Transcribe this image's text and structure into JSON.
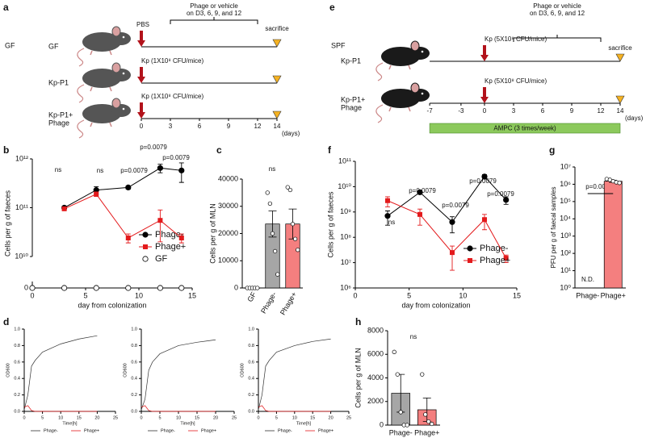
{
  "panel_labels": [
    "a",
    "b",
    "c",
    "d",
    "e",
    "f",
    "g",
    "h"
  ],
  "diagram_a": {
    "group": "GF",
    "phage_note": [
      "Phage or vehicle",
      "on D3, 6, 9, and 12"
    ],
    "end": "sacrifice",
    "rows": [
      {
        "name": [
          "GF"
        ],
        "dose": "PBS"
      },
      {
        "name": [
          "Kp-P1"
        ],
        "dose": "Kp (1X10⁸ CFU/mice)"
      },
      {
        "name": [
          "Kp-P1+",
          "Phage"
        ],
        "dose": "Kp (1X10⁸ CFU/mice)"
      }
    ],
    "days": [
      0,
      3,
      6,
      9,
      12,
      14
    ],
    "unit": "(days)"
  },
  "diagram_e": {
    "group": "SPF",
    "phage_note": [
      "Phage or vehicle",
      "on D3, 6, 9, and 12"
    ],
    "end": "sacrifice",
    "rows": [
      {
        "name": [
          "Kp-P1"
        ],
        "dose": "Kp (5X10⁸ CFU/mice)"
      },
      {
        "name": [
          "Kp-P1+",
          "Phage"
        ],
        "dose": "Kp (5X10⁸ CFU/mice)"
      }
    ],
    "days": [
      -7,
      -3,
      0,
      3,
      6,
      9,
      12,
      14
    ],
    "unit": "(days)",
    "treatment": "AMPC (3 times/week)"
  },
  "chart_data": [
    {
      "type": "line",
      "yscale": "log",
      "markers": true,
      "legend": "lower right",
      "ylabel": "Cells per g of faeces",
      "xlabel": "day from colonization",
      "xlim": [
        0,
        15
      ],
      "xticks": [
        0,
        5,
        10,
        15
      ],
      "ylim": [
        10000000000,
        1000000000000
      ],
      "yticks": [
        0,
        {
          "value": 10000000000,
          "label": "10¹⁰"
        },
        {
          "value": 100000000000,
          "label": "10¹¹"
        },
        {
          "value": 1000000000000,
          "label": "10¹²"
        }
      ],
      "series": [
        {
          "name": "Phage-",
          "color": "#000000",
          "marker": "circle",
          "x": [
            3,
            6,
            9,
            12,
            14
          ],
          "values": [
            100000000000,
            230000000000,
            260000000000,
            650000000000,
            580000000000
          ],
          "errors": [
            8000000000,
            40000000000,
            20000000000,
            130000000000,
            250000000000
          ]
        },
        {
          "name": "Phage+",
          "color": "#e31a1c",
          "marker": "square",
          "x": [
            3,
            6,
            9,
            12,
            14
          ],
          "values": [
            95000000000,
            190000000000,
            24000000000,
            55000000000,
            24000000000
          ],
          "errors": [
            5000000000,
            20000000000,
            5000000000,
            35000000000,
            5000000000
          ]
        },
        {
          "name": "GF",
          "color": "#ffffff",
          "marker": "open-circle",
          "line": false,
          "x": [
            0,
            3,
            6,
            9,
            12,
            14
          ],
          "values": [
            0,
            0,
            0,
            0,
            0,
            0
          ]
        }
      ],
      "annotations": [
        "ns",
        "ns",
        "p=0.0079",
        "p=0.0079",
        "p=0.0079"
      ]
    },
    {
      "type": "bar",
      "ylabel": "Cells per g of MLN",
      "categories": [
        "GF",
        "Phage-",
        "Phage+"
      ],
      "values": [
        0,
        23500,
        23500
      ],
      "errors": [
        0,
        4800,
        5500
      ],
      "colors": [
        "#ffffff",
        "#a6a6a6",
        "#f47f7f"
      ],
      "points": [
        [
          0,
          0,
          0,
          0,
          0
        ],
        [
          35000,
          31000,
          20000,
          13500,
          5000
        ],
        [
          37000,
          36000,
          23500,
          18000,
          14000
        ]
      ],
      "ylim": [
        0,
        40000
      ],
      "yticks": [
        0,
        10000,
        20000,
        30000,
        40000
      ],
      "annotations": [
        "ns"
      ]
    },
    {
      "type": "line",
      "yscale": "log",
      "markers": true,
      "legend": "lower right",
      "ylabel": "Cells per g of faeces",
      "xlabel": "day from colonization",
      "xlim": [
        0,
        15
      ],
      "xticks": [
        0,
        5,
        10,
        15
      ],
      "ylim": [
        1000000,
        100000000000
      ],
      "yticks": [
        {
          "value": 1000000,
          "label": "10⁶"
        },
        {
          "value": 10000000,
          "label": "10⁷"
        },
        {
          "value": 100000000,
          "label": "10⁸"
        },
        {
          "value": 1000000000,
          "label": "10⁹"
        },
        {
          "value": 10000000000,
          "label": "10¹⁰"
        },
        {
          "value": 100000000000,
          "label": "10¹¹"
        }
      ],
      "series": [
        {
          "name": "Phage-",
          "color": "#000000",
          "marker": "circle",
          "x": [
            3,
            6,
            9,
            12,
            14
          ],
          "values": [
            700000000,
            6000000000,
            400000000,
            25000000000,
            3000000000
          ],
          "errors": [
            400000000,
            1000000000,
            250000000,
            5000000000,
            1000000000
          ]
        },
        {
          "name": "Phage+",
          "color": "#e31a1c",
          "marker": "square",
          "x": [
            3,
            6,
            9,
            12,
            14
          ],
          "values": [
            2800000000,
            800000000,
            25000000,
            500000000,
            15000000
          ],
          "errors": [
            1200000000,
            500000000,
            20000000,
            300000000,
            5000000
          ]
        }
      ],
      "annotations": [
        "ns",
        "p=0.0079",
        "p=0.0079",
        "p=0.0079",
        "p=0.0079"
      ]
    },
    {
      "type": "bar",
      "yscale": "log",
      "ylabel": "PFU per g of faecal samples",
      "categories": [
        "Phage-",
        "Phage+"
      ],
      "values": [
        null,
        1500000
      ],
      "errors": [
        null,
        200000
      ],
      "colors": [
        "#a6a6a6",
        "#f47f7f"
      ],
      "points": [
        null,
        [
          2000000,
          1800000,
          1500000,
          1300000,
          1200000
        ]
      ],
      "ylim": [
        1,
        10000000
      ],
      "yticks": [
        {
          "value": 1,
          "label": "10⁰"
        },
        {
          "value": 10,
          "label": "10¹"
        },
        {
          "value": 100,
          "label": "10²"
        },
        {
          "value": 1000,
          "label": "10³"
        },
        {
          "value": 10000,
          "label": "10⁴"
        },
        {
          "value": 100000,
          "label": "10⁵"
        },
        {
          "value": 1000000,
          "label": "10⁶"
        },
        {
          "value": 10000000,
          "label": "10⁷"
        }
      ],
      "annotations": [
        "p=0.0003",
        "N.D."
      ]
    },
    {
      "type": "line",
      "markers": false,
      "legend": "bottom",
      "ylabel": "OD600",
      "xlabel": "Time[h]",
      "xlim": [
        0,
        25
      ],
      "xticks": [
        0,
        5,
        10,
        15,
        20,
        25
      ],
      "ylim": [
        0,
        1
      ],
      "yticks": [
        {
          "value": 0,
          "label": "0.0"
        },
        0.2,
        0.4,
        0.6,
        0.8,
        {
          "value": 1,
          "label": "1.0"
        }
      ],
      "series": [
        {
          "name": "Phage-",
          "color": "#333333",
          "x": [
            0,
            1,
            2,
            3,
            5,
            10,
            15,
            20
          ],
          "values": [
            0.02,
            0.2,
            0.55,
            0.62,
            0.72,
            0.82,
            0.88,
            0.92
          ]
        },
        {
          "name": "Phage+",
          "color": "#e31a1c",
          "x": [
            0,
            1,
            2,
            3,
            5,
            10,
            15,
            20
          ],
          "values": [
            0.05,
            0.07,
            0.01,
            0,
            0,
            0,
            0,
            0
          ]
        }
      ]
    },
    {
      "type": "line",
      "markers": false,
      "legend": "bottom",
      "ylabel": "OD600",
      "xlabel": "Time[h]",
      "xlim": [
        0,
        25
      ],
      "xticks": [
        0,
        5,
        10,
        15,
        20,
        25
      ],
      "ylim": [
        0,
        1
      ],
      "yticks": [
        {
          "value": 0,
          "label": "0.0"
        },
        0.2,
        0.4,
        0.6,
        0.8,
        {
          "value": 1,
          "label": "1.0"
        }
      ],
      "series": [
        {
          "name": "Phage-",
          "color": "#333333",
          "x": [
            0,
            1,
            2,
            3,
            5,
            10,
            15,
            20
          ],
          "values": [
            0.02,
            0.15,
            0.5,
            0.6,
            0.7,
            0.8,
            0.84,
            0.87
          ]
        },
        {
          "name": "Phage+",
          "color": "#e31a1c",
          "x": [
            0,
            1,
            2,
            3,
            5,
            10,
            15,
            20
          ],
          "values": [
            0.05,
            0.07,
            0.01,
            0,
            0,
            0,
            0,
            0
          ]
        }
      ]
    },
    {
      "type": "line",
      "markers": false,
      "legend": "bottom",
      "ylabel": "OD600",
      "xlabel": "Time[h]",
      "xlim": [
        0,
        25
      ],
      "xticks": [
        0,
        5,
        10,
        15,
        20,
        25
      ],
      "ylim": [
        0,
        1
      ],
      "yticks": [
        {
          "value": 0,
          "label": "0.0"
        },
        0.2,
        0.4,
        0.6,
        0.8,
        {
          "value": 1,
          "label": "1.0"
        }
      ],
      "series": [
        {
          "name": "Phage-",
          "color": "#333333",
          "x": [
            0,
            1,
            2,
            3,
            5,
            10,
            15,
            20
          ],
          "values": [
            0.02,
            0.2,
            0.55,
            0.62,
            0.72,
            0.8,
            0.85,
            0.88
          ]
        },
        {
          "name": "Phage+",
          "color": "#e31a1c",
          "x": [
            0,
            1,
            2,
            3,
            5,
            10,
            15,
            20
          ],
          "values": [
            0.05,
            0.07,
            0.01,
            0,
            0,
            0,
            0,
            0
          ]
        }
      ]
    },
    {
      "type": "bar",
      "ylabel": "Cells per g of MLN",
      "categories": [
        "Phage-",
        "Phage+"
      ],
      "values": [
        2700,
        1300
      ],
      "errors": [
        1600,
        1000
      ],
      "colors": [
        "#a6a6a6",
        "#f47f7f"
      ],
      "points": [
        [
          6200,
          4300,
          1100,
          0,
          0
        ],
        [
          4300,
          900,
          300,
          100
        ]
      ],
      "ylim": [
        0,
        8000
      ],
      "yticks": [
        0,
        2000,
        4000,
        6000,
        8000
      ],
      "annotations": [
        "ns"
      ]
    }
  ]
}
